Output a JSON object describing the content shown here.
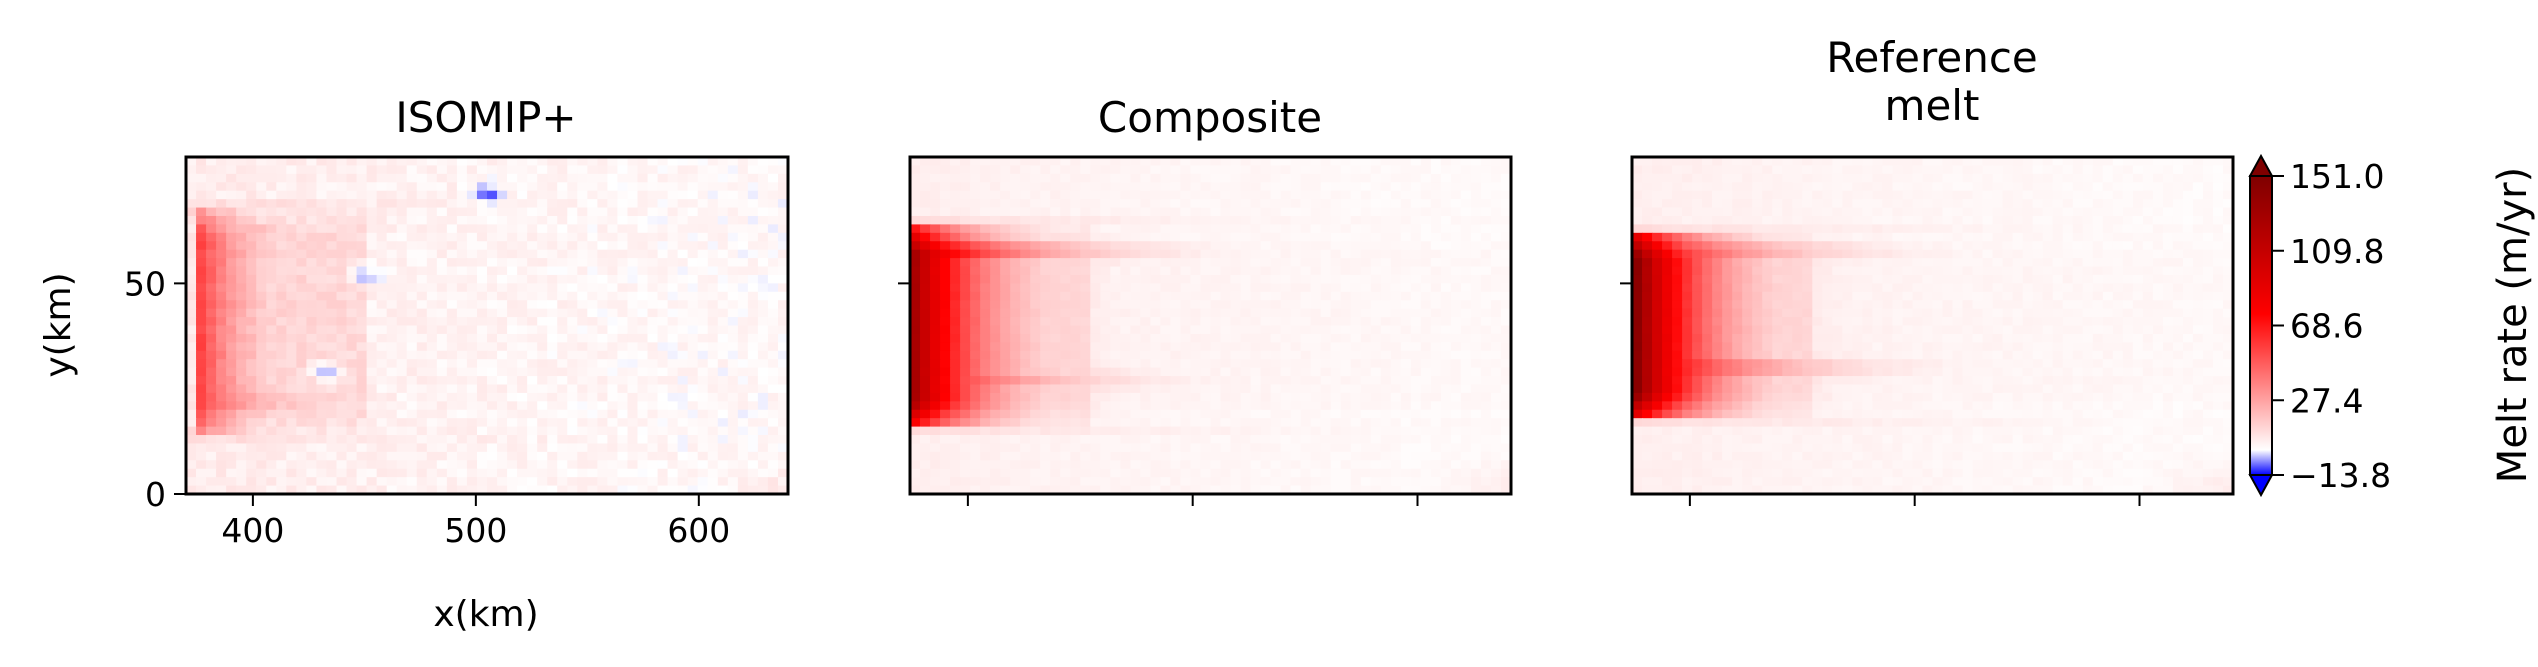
{
  "chart_data": [
    {
      "type": "heatmap",
      "title": "ISOMIP+",
      "xlabel": "x(km)",
      "ylabel": "y(km)",
      "x_range": [
        370,
        640
      ],
      "y_range": [
        0,
        80
      ],
      "x_ticks": [
        {
          "value": 400,
          "label": "400"
        },
        {
          "value": 500,
          "label": "500"
        },
        {
          "value": 600,
          "label": "600"
        }
      ],
      "y_ticks": [
        {
          "value": 0,
          "label": "0"
        },
        {
          "value": 50,
          "label": "50"
        }
      ],
      "field": {
        "base_melt": 6,
        "cavity_y": [
          14,
          67
        ],
        "grounding_line_x": 374,
        "front_melt": 62,
        "decay_km": 22,
        "step_x": 450,
        "step_level": 11,
        "band_levels": [
          {
            "y": 63,
            "melt": 48
          },
          {
            "y": 22,
            "melt": 58
          }
        ],
        "negative_patches": [
          {
            "x": 505,
            "y": 71,
            "melt": -9
          },
          {
            "x": 433,
            "y": 29,
            "melt": -7
          },
          {
            "x": 450,
            "y": 52,
            "melt": -4
          }
        ]
      }
    },
    {
      "type": "heatmap",
      "title": "Composite",
      "x_range": [
        370,
        640
      ],
      "y_range": [
        0,
        80
      ],
      "x_ticks": [
        {
          "value": 396,
          "label": ""
        },
        {
          "value": 497,
          "label": ""
        },
        {
          "value": 598,
          "label": ""
        }
      ],
      "y_ticks": [
        {
          "value": 50,
          "label": ""
        }
      ],
      "field": {
        "base_melt": 5,
        "cavity_y": [
          16,
          63
        ],
        "grounding_line_x": 370,
        "front_melt": 138,
        "decay_km": 26,
        "step_x": 450,
        "step_level": 12,
        "band_levels": [
          {
            "y": 58,
            "melt": 132
          },
          {
            "y": 27,
            "melt": 96
          }
        ],
        "negative_patches": []
      }
    },
    {
      "type": "heatmap",
      "title": "Reference\nmelt",
      "x_range": [
        370,
        640
      ],
      "y_range": [
        0,
        80
      ],
      "x_ticks": [
        {
          "value": 396,
          "label": ""
        },
        {
          "value": 497,
          "label": ""
        },
        {
          "value": 598,
          "label": ""
        }
      ],
      "y_ticks": [
        {
          "value": 50,
          "label": ""
        }
      ],
      "field": {
        "base_melt": 5,
        "cavity_y": [
          18,
          62
        ],
        "grounding_line_x": 372,
        "front_melt": 145,
        "decay_km": 26,
        "step_x": 450,
        "step_level": 12,
        "band_levels": [
          {
            "y": 58,
            "melt": 118
          },
          {
            "y": 30,
            "melt": 120
          }
        ],
        "negative_patches": []
      }
    }
  ],
  "colorbar": {
    "label": "Melt rate (m/yr)",
    "range": [
      -13.8,
      151.0
    ],
    "extend": "both",
    "colormap": "seismic-upper",
    "stops": [
      {
        "value": -13.8,
        "color": "#0000ff"
      },
      {
        "value": 0,
        "color": "#ffffff"
      },
      {
        "value": 75,
        "color": "#ff0000"
      },
      {
        "value": 151.0,
        "color": "#7f0000"
      }
    ],
    "ticks": [
      {
        "value": 151.0,
        "label": "151.0"
      },
      {
        "value": 109.8,
        "label": "109.8"
      },
      {
        "value": 68.6,
        "label": "68.6"
      },
      {
        "value": 27.4,
        "label": "27.4"
      },
      {
        "value": -13.8,
        "label": "−13.8"
      }
    ]
  }
}
